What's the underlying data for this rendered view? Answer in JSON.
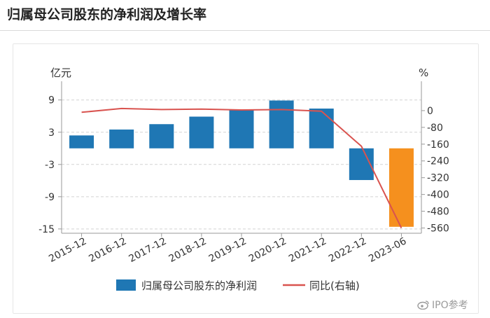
{
  "page": {
    "title": "归属母公司股东的净利润及增长率",
    "watermark": "IPO参考"
  },
  "chart_data": {
    "type": "bar",
    "categories": [
      "2015-12",
      "2016-12",
      "2017-12",
      "2018-12",
      "2019-12",
      "2020-12",
      "2021-12",
      "2022-12",
      "2023-06"
    ],
    "left_unit": "亿元",
    "right_unit": "%",
    "y_left": {
      "ylim": [
        -15.8,
        11.7
      ],
      "ticks": [
        9,
        3,
        -3,
        -9,
        -15
      ]
    },
    "y_right": {
      "ylim": [
        -585,
        120
      ],
      "ticks": [
        0,
        -80,
        -160,
        -240,
        -320,
        -400,
        -480,
        -560
      ]
    },
    "grid": true,
    "legend_placement": "bottom-center",
    "series": [
      {
        "name": "归属母公司股东的净利润",
        "type": "bar",
        "axis": "left",
        "values": [
          2.4,
          3.5,
          4.5,
          5.9,
          7.2,
          8.9,
          7.4,
          -5.9,
          -14.6
        ],
        "color": "#1f77b4",
        "highlight": {
          "index": 8,
          "color": "#f5901e"
        }
      },
      {
        "name": "同比(右轴)",
        "type": "line",
        "axis": "right",
        "values": [
          -8,
          10,
          5,
          7,
          3,
          5,
          -3,
          -170,
          -560
        ],
        "color": "#d9534f"
      }
    ]
  }
}
